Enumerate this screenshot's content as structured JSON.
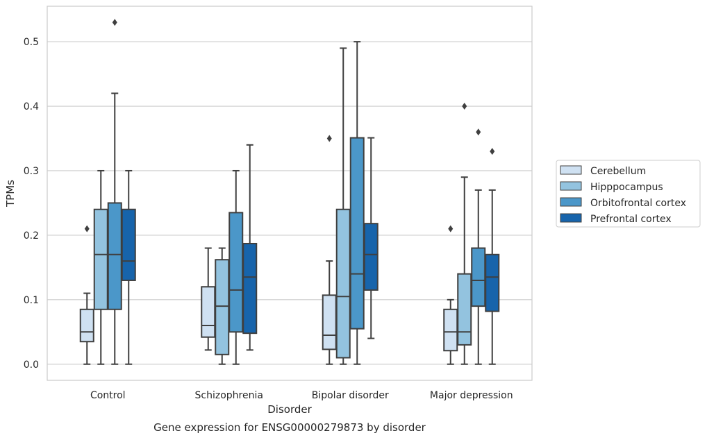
{
  "caption": "Gene expression for ENSG00000279873 by disorder",
  "chart_data": {
    "type": "box",
    "title": "",
    "xlabel": "Disorder",
    "ylabel": "TPMs",
    "ylim": [
      -0.025,
      0.555
    ],
    "yticks": [
      0.0,
      0.1,
      0.2,
      0.3,
      0.4,
      0.5
    ],
    "ytick_labels": [
      "0.0",
      "0.1",
      "0.2",
      "0.3",
      "0.4",
      "0.5"
    ],
    "grid": "horizontal",
    "legend_position": "right",
    "categories": [
      "Control",
      "Schizophrenia",
      "Bipolar disorder",
      "Major depression"
    ],
    "series": [
      {
        "name": "Cerebellum",
        "color": "#cfe1f2",
        "boxes": [
          {
            "whisker_low": 0.0,
            "q1": 0.035,
            "median": 0.05,
            "q3": 0.085,
            "whisker_high": 0.11,
            "outliers": [
              0.21
            ]
          },
          {
            "whisker_low": 0.022,
            "q1": 0.042,
            "median": 0.06,
            "q3": 0.12,
            "whisker_high": 0.18,
            "outliers": []
          },
          {
            "whisker_low": 0.0,
            "q1": 0.023,
            "median": 0.045,
            "q3": 0.107,
            "whisker_high": 0.16,
            "outliers": [
              0.35
            ]
          },
          {
            "whisker_low": 0.0,
            "q1": 0.021,
            "median": 0.05,
            "q3": 0.085,
            "whisker_high": 0.1,
            "outliers": [
              0.21
            ]
          }
        ]
      },
      {
        "name": "Hipppocampus",
        "color": "#93c3df",
        "boxes": [
          {
            "whisker_low": 0.0,
            "q1": 0.085,
            "median": 0.17,
            "q3": 0.24,
            "whisker_high": 0.3,
            "outliers": []
          },
          {
            "whisker_low": 0.0,
            "q1": 0.015,
            "median": 0.09,
            "q3": 0.162,
            "whisker_high": 0.18,
            "outliers": []
          },
          {
            "whisker_low": 0.0,
            "q1": 0.01,
            "median": 0.105,
            "q3": 0.24,
            "whisker_high": 0.49,
            "outliers": []
          },
          {
            "whisker_low": 0.0,
            "q1": 0.03,
            "median": 0.05,
            "q3": 0.14,
            "whisker_high": 0.29,
            "outliers": [
              0.4
            ]
          }
        ]
      },
      {
        "name": "Orbitofrontal cortex",
        "color": "#4b97c9",
        "boxes": [
          {
            "whisker_low": 0.0,
            "q1": 0.085,
            "median": 0.17,
            "q3": 0.25,
            "whisker_high": 0.42,
            "outliers": [
              0.53
            ]
          },
          {
            "whisker_low": 0.0,
            "q1": 0.05,
            "median": 0.115,
            "q3": 0.235,
            "whisker_high": 0.3,
            "outliers": []
          },
          {
            "whisker_low": 0.0,
            "q1": 0.055,
            "median": 0.14,
            "q3": 0.351,
            "whisker_high": 0.5,
            "outliers": []
          },
          {
            "whisker_low": 0.0,
            "q1": 0.09,
            "median": 0.13,
            "q3": 0.18,
            "whisker_high": 0.27,
            "outliers": [
              0.36
            ]
          }
        ]
      },
      {
        "name": "Prefrontal cortex",
        "color": "#1764ab",
        "boxes": [
          {
            "whisker_low": 0.0,
            "q1": 0.13,
            "median": 0.16,
            "q3": 0.24,
            "whisker_high": 0.3,
            "outliers": []
          },
          {
            "whisker_low": 0.022,
            "q1": 0.048,
            "median": 0.135,
            "q3": 0.187,
            "whisker_high": 0.34,
            "outliers": []
          },
          {
            "whisker_low": 0.04,
            "q1": 0.115,
            "median": 0.17,
            "q3": 0.218,
            "whisker_high": 0.351,
            "outliers": []
          },
          {
            "whisker_low": 0.0,
            "q1": 0.082,
            "median": 0.135,
            "q3": 0.17,
            "whisker_high": 0.27,
            "outliers": [
              0.33
            ]
          }
        ]
      }
    ]
  }
}
